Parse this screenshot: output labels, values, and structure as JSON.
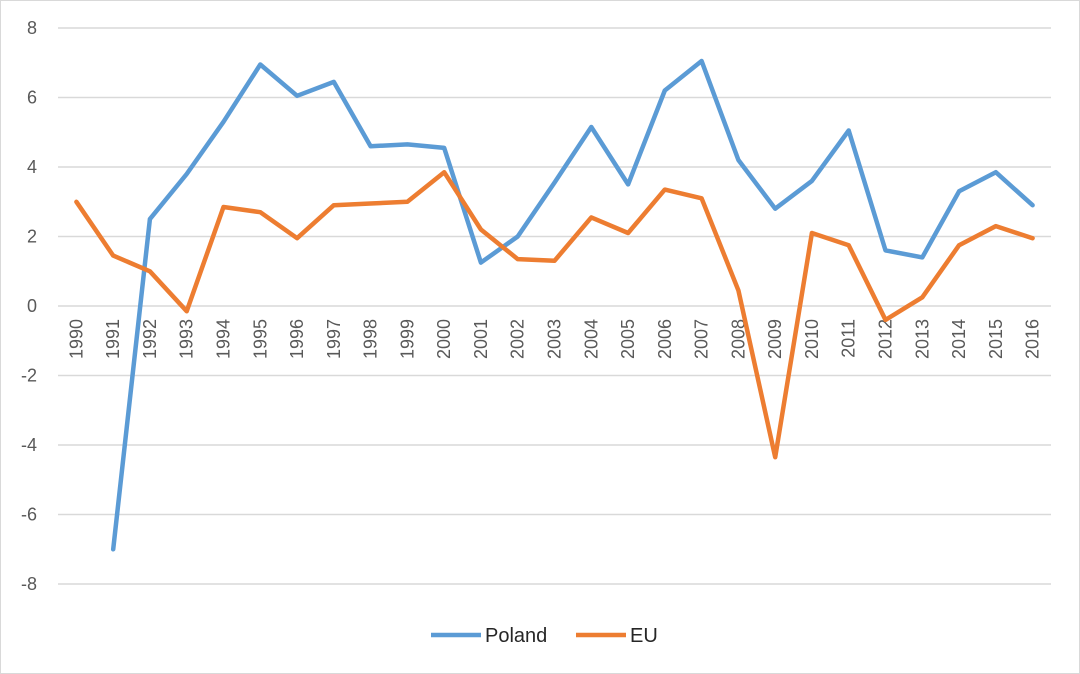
{
  "chart_data": {
    "type": "line",
    "title": "",
    "xlabel": "",
    "ylabel": "",
    "ylim": [
      -8,
      8
    ],
    "yticks": [
      -8,
      -6,
      -4,
      -2,
      0,
      2,
      4,
      6,
      8
    ],
    "grid": true,
    "legend_position": "bottom",
    "categories": [
      "1990",
      "1991",
      "1992",
      "1993",
      "1994",
      "1995",
      "1996",
      "1997",
      "1998",
      "1999",
      "2000",
      "2001",
      "2002",
      "2003",
      "2004",
      "2005",
      "2006",
      "2007",
      "2008",
      "2009",
      "2010",
      "2011",
      "2012",
      "2013",
      "2014",
      "2015",
      "2016"
    ],
    "series": [
      {
        "name": "Poland",
        "color": "#5b9bd5",
        "values": [
          null,
          -7.0,
          2.5,
          3.8,
          5.3,
          6.95,
          6.05,
          6.45,
          4.6,
          4.65,
          4.55,
          1.25,
          2.0,
          3.55,
          5.15,
          3.5,
          6.2,
          7.05,
          4.2,
          2.8,
          3.6,
          5.05,
          1.6,
          1.4,
          3.3,
          3.85,
          2.9
        ]
      },
      {
        "name": "EU",
        "color": "#ed7d31",
        "values": [
          3.0,
          1.45,
          1.0,
          -0.15,
          2.85,
          2.7,
          1.95,
          2.9,
          2.95,
          3.0,
          3.85,
          2.2,
          1.35,
          1.3,
          2.55,
          2.1,
          3.35,
          3.1,
          0.45,
          -4.35,
          2.1,
          1.75,
          -0.4,
          0.25,
          1.75,
          2.3,
          1.95
        ]
      }
    ]
  }
}
